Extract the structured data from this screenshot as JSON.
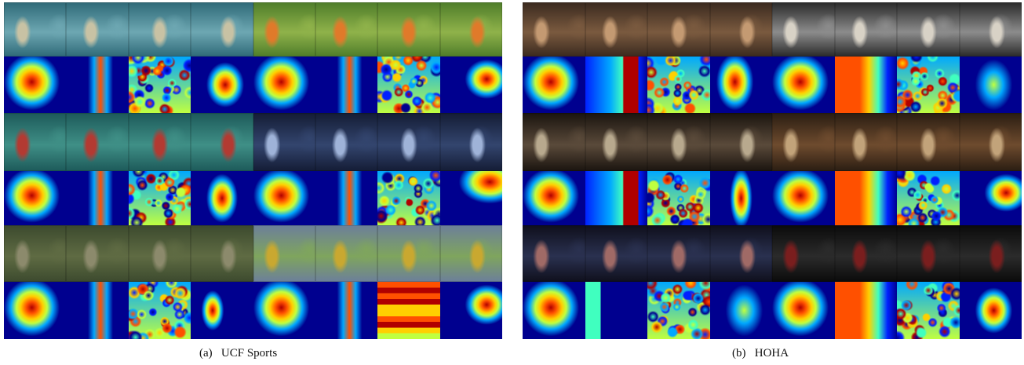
{
  "figure": {
    "panels": [
      {
        "id": "a",
        "caption_prefix": "(a)",
        "caption_text": "UCF Sports",
        "frame_rows": [
          {
            "clips": [
              {
                "theme": "diving",
                "colors": [
                  "#2f6a78",
                  "#6da7b2",
                  "#c8c2a4"
                ]
              },
              {
                "theme": "kicking",
                "colors": [
                  "#4f7d2a",
                  "#8fb24a",
                  "#e07a2a"
                ]
              }
            ]
          },
          {
            "clips": [
              {
                "theme": "lifting",
                "colors": [
                  "#1d5a5a",
                  "#3f8f86",
                  "#b33a32"
                ]
              },
              {
                "theme": "pommel-horse",
                "colors": [
                  "#141c35",
                  "#33456e",
                  "#9fb3d8"
                ]
              }
            ]
          },
          {
            "clips": [
              {
                "theme": "golf",
                "colors": [
                  "#3c4a2e",
                  "#5f6b43",
                  "#8c8a6c"
                ]
              },
              {
                "theme": "walking",
                "colors": [
                  "#6c7f9a",
                  "#7fa55d",
                  "#c9a830"
                ]
              }
            ]
          }
        ],
        "heatmap_rows": [
          [
            "blob",
            "bar",
            "noise",
            "diag",
            "blob",
            "bar",
            "noise",
            "corner"
          ],
          [
            "blob",
            "bar",
            "noise",
            "tee",
            "blob",
            "bar",
            "noise",
            "arc"
          ],
          [
            "blob",
            "bar",
            "noise",
            "small",
            "blob",
            "bar",
            "field",
            "corner"
          ]
        ]
      },
      {
        "id": "b",
        "caption_prefix": "(b)",
        "caption_text": "HOHA",
        "frame_rows": [
          {
            "clips": [
              {
                "theme": "face",
                "colors": [
                  "#3b2a1f",
                  "#7a5a3f",
                  "#c49a72"
                ]
              },
              {
                "theme": "car-interior",
                "colors": [
                  "#2a2a2a",
                  "#8c8c8c",
                  "#d8d2c6"
                ]
              }
            ]
          },
          {
            "clips": [
              {
                "theme": "doorway",
                "colors": [
                  "#1a140f",
                  "#5a4a3a",
                  "#b8a98e"
                ]
              },
              {
                "theme": "table",
                "colors": [
                  "#2a1d12",
                  "#6e4b2e",
                  "#c2a37a"
                ]
              }
            ]
          },
          {
            "clips": [
              {
                "theme": "hands",
                "colors": [
                  "#0f0f1c",
                  "#2a3150",
                  "#a06a66"
                ]
              },
              {
                "theme": "dark-room",
                "colors": [
                  "#0b0b0b",
                  "#2b2b2b",
                  "#7a1e1e"
                ]
              }
            ]
          }
        ],
        "heatmap_rows": [
          [
            "blob",
            "split",
            "noise",
            "crescent",
            "blob",
            "wall",
            "noise",
            "soft"
          ],
          [
            "blob",
            "split",
            "noise",
            "tall",
            "blob",
            "wall",
            "noise",
            "corner"
          ],
          [
            "blob",
            "block",
            "noise",
            "soft",
            "blob",
            "wall",
            "noise",
            "diag"
          ]
        ]
      }
    ]
  },
  "colormap": [
    "#00008f",
    "#0020ff",
    "#00a8ff",
    "#40ffbf",
    "#c0ff40",
    "#ffd000",
    "#ff5000",
    "#b00000"
  ]
}
